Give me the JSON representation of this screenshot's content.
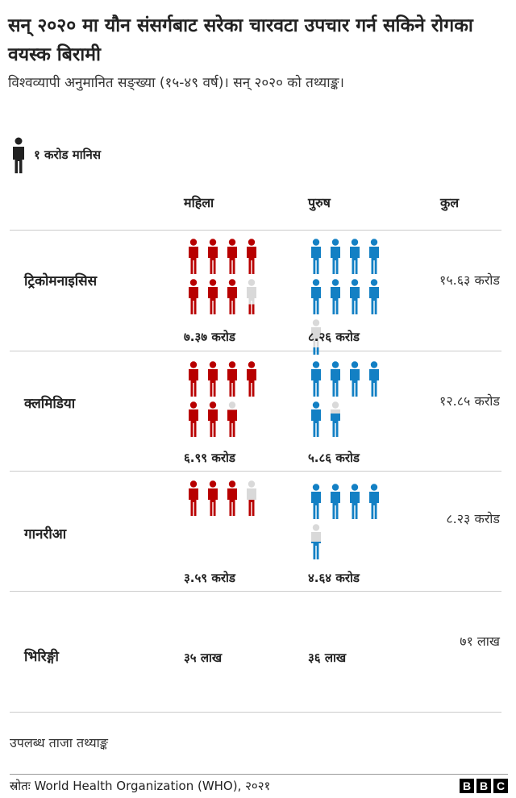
{
  "title": "सन् २०२० मा यौन संसर्गबाट सरेका चारवटा उपचार गर्न सकिने रोगका वयस्क बिरामी",
  "subtitle": "विश्वव्यापी अनुमानित सङ्ख्या (१५-४९ वर्ष)। सन् २०२० को तथ्याङ्क।",
  "legend": {
    "icon": "person-icon",
    "label": "१ करोड मानिस"
  },
  "columns": {
    "women": "महिला",
    "men": "पुरुष",
    "total": "कुल"
  },
  "colors": {
    "women": "#b80000",
    "men": "#1380c4",
    "fraction_remainder": "#d9d9d9",
    "legend_icon": "#222222"
  },
  "chart_data": {
    "type": "pictogram",
    "title": "सन् २०२० मा यौन संसर्गबाट सरेका चारवटा उपचार गर्न सकिने रोगका वयस्क बिरामी",
    "unit_per_icon": "१ करोड मानिस",
    "unit_per_icon_value": 1,
    "value_unit": "करोड",
    "series": [
      {
        "name": "महिला",
        "color": "#b80000"
      },
      {
        "name": "पुरुष",
        "color": "#1380c4"
      }
    ],
    "rows": [
      {
        "label": "ट्रिकोमनाइसिस",
        "women": 7.37,
        "men": 8.26,
        "women_label": "७.३७ करोड",
        "men_label": "८.२६ करोड",
        "total_label": "१५.६३ करोड"
      },
      {
        "label": "क्लमिडिया",
        "women": 6.99,
        "men": 5.86,
        "women_label": "६.९९ करोड",
        "men_label": "५.८६ करोड",
        "total_label": "१२.८५ करोड"
      },
      {
        "label": "गानरीआ",
        "women": 3.59,
        "men": 4.64,
        "women_label": "३.५९ करोड",
        "men_label": "४.६४ करोड",
        "total_label": "८.२३ करोड"
      },
      {
        "label": "भिरिङ्गी",
        "women": 0.35,
        "men": 0.36,
        "women_label": "३५ लाख",
        "men_label": "३६ लाख",
        "total_label": "७१ लाख"
      }
    ]
  },
  "note": "उपलब्ध ताजा तथ्याङ्क",
  "source": "स्रोतः World Health Organization (WHO), २०२१",
  "logo": [
    "B",
    "B",
    "C"
  ]
}
